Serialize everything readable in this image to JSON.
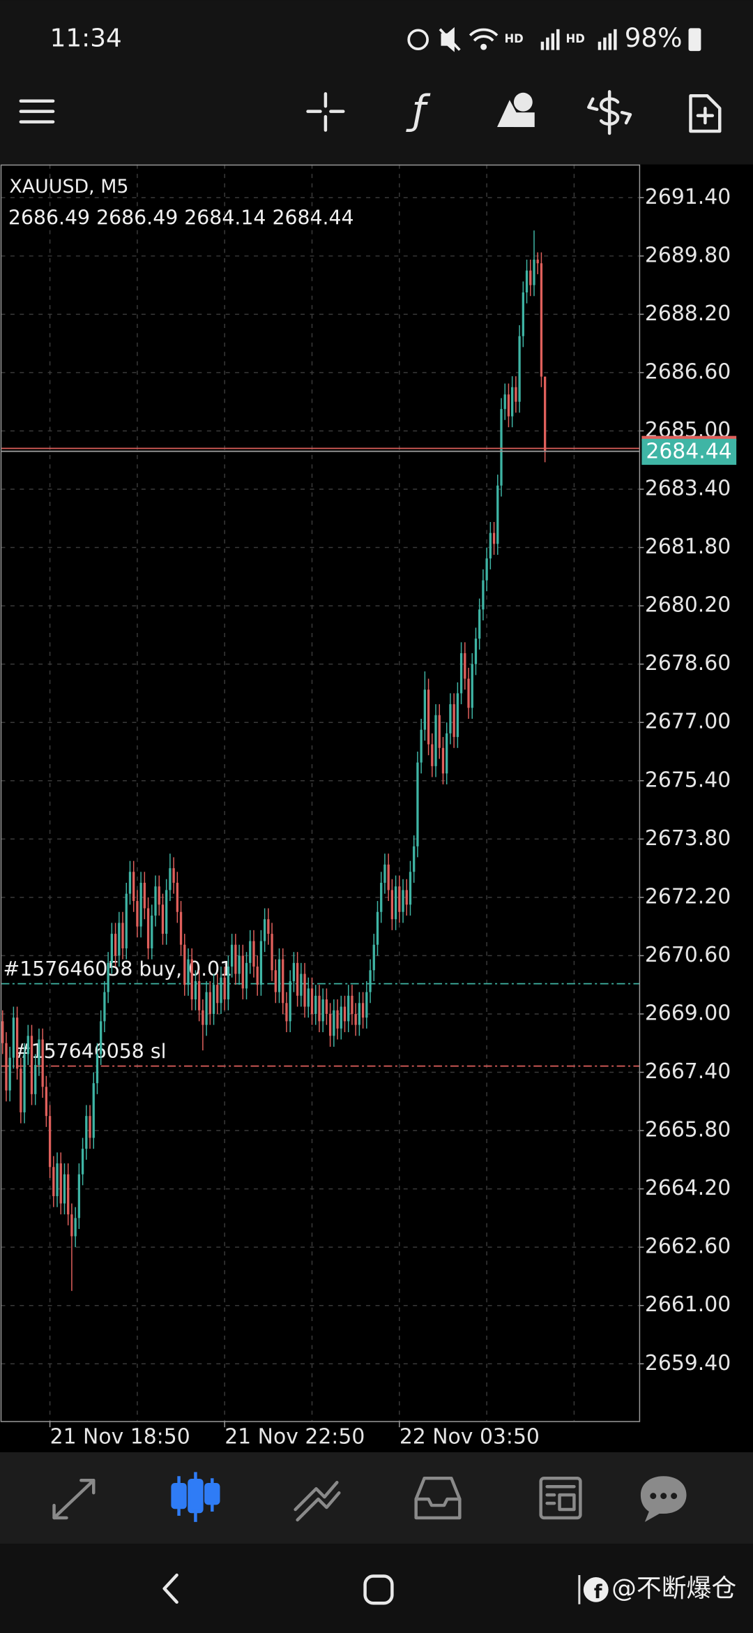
{
  "status_bar": {
    "time": "11:34",
    "battery": "98%"
  },
  "chart_data": {
    "type": "candlestick",
    "title": "XAUUSD, M5",
    "up_color": "#3fb5a5",
    "down_color": "#e0605c",
    "categories": [
      null,
      null,
      null,
      null,
      null,
      null,
      null,
      null,
      null,
      null,
      null,
      null,
      null,
      "21 Nov 18:50",
      null,
      null,
      null,
      null,
      null,
      null,
      null,
      null,
      null,
      null,
      null,
      null,
      null,
      null,
      null,
      null,
      null,
      null,
      null,
      null,
      null,
      null,
      null,
      null,
      null,
      null,
      null,
      null,
      null,
      null,
      null,
      null,
      null,
      null,
      null,
      null,
      null,
      null,
      null,
      null,
      null,
      null,
      null,
      null,
      null,
      null,
      null,
      "21 Nov 22:50",
      null,
      null,
      null,
      null,
      null,
      null,
      null,
      null,
      null,
      null,
      null,
      null,
      null,
      null,
      null,
      null,
      null,
      null,
      null,
      null,
      null,
      null,
      null,
      null,
      null,
      null,
      null,
      null,
      null,
      null,
      null,
      null,
      null,
      null,
      null,
      null,
      null,
      null,
      null,
      null,
      null,
      null,
      null,
      null,
      null,
      null,
      null,
      "22 Nov 03:50",
      null,
      null,
      null,
      null,
      null,
      null,
      null,
      null,
      null,
      null,
      null,
      null,
      null,
      null,
      null,
      null,
      null,
      null,
      null,
      null,
      null,
      null,
      null,
      null,
      null,
      null,
      null,
      null,
      null,
      null,
      null,
      null,
      null,
      null,
      null,
      null,
      null,
      null,
      null,
      null
    ],
    "open": [
      2668.8,
      2668.2,
      2666.9,
      2667.8,
      2668.9,
      2667.5,
      2666.3,
      2667.9,
      2668.4,
      2666.8,
      2667.6,
      2668.3,
      2667.0,
      2666.2,
      2664.8,
      2664.0,
      2664.9,
      2663.8,
      2664.6,
      2663.5,
      2662.9,
      2663.4,
      2664.6,
      2665.3,
      2666.2,
      2665.6,
      2667.1,
      2667.9,
      2668.8,
      2669.6,
      2670.4,
      2671.2,
      2670.6,
      2671.5,
      2670.8,
      2672.3,
      2672.9,
      2672.1,
      2671.4,
      2672.6,
      2671.9,
      2670.8,
      2671.7,
      2672.5,
      2672.0,
      2671.2,
      2672.4,
      2673.0,
      2672.6,
      2671.8,
      2670.9,
      2669.8,
      2670.5,
      2669.4,
      2669.9,
      2669.1,
      2668.7,
      2669.6,
      2669.0,
      2669.8,
      2669.3,
      2670.0,
      2669.4,
      2670.3,
      2670.9,
      2670.1,
      2670.6,
      2669.7,
      2670.4,
      2671.0,
      2670.3,
      2669.8,
      2671.0,
      2671.6,
      2671.2,
      2670.2,
      2669.6,
      2670.5,
      2669.3,
      2668.8,
      2669.9,
      2670.4,
      2669.5,
      2670.1,
      2669.2,
      2669.7,
      2669.0,
      2669.5,
      2668.8,
      2669.4,
      2669.0,
      2668.4,
      2669.1,
      2668.6,
      2669.2,
      2668.8,
      2669.5,
      2669.0,
      2668.7,
      2669.3,
      2668.9,
      2669.6,
      2670.2,
      2670.9,
      2671.8,
      2672.6,
      2673.1,
      2672.4,
      2671.6,
      2672.5,
      2671.8,
      2672.4,
      2672.0,
      2672.9,
      2673.6,
      2675.9,
      2676.8,
      2677.9,
      2676.4,
      2675.8,
      2677.2,
      2676.3,
      2675.6,
      2676.7,
      2677.5,
      2676.6,
      2677.8,
      2678.9,
      2678.2,
      2677.4,
      2678.6,
      2679.3,
      2680.1,
      2680.9,
      2681.5,
      2682.2,
      2681.9,
      2683.5,
      2685.6,
      2686.0,
      2685.4,
      2686.2,
      2685.8,
      2687.6,
      2688.8,
      2689.4,
      2689.0,
      2689.7,
      2689.6,
      2686.49
    ],
    "high": [
      2669.1,
      2668.5,
      2668.1,
      2669.2,
      2669.2,
      2667.8,
      2668.2,
      2668.7,
      2668.7,
      2667.9,
      2668.6,
      2668.6,
      2667.3,
      2666.5,
      2665.1,
      2665.2,
      2665.2,
      2664.9,
      2664.9,
      2663.8,
      2663.7,
      2664.9,
      2665.6,
      2666.5,
      2666.5,
      2667.4,
      2668.2,
      2669.1,
      2669.9,
      2670.7,
      2671.5,
      2671.5,
      2671.8,
      2671.8,
      2672.6,
      2673.2,
      2673.2,
      2672.4,
      2672.9,
      2672.9,
      2672.2,
      2672.0,
      2672.8,
      2672.8,
      2672.3,
      2672.7,
      2673.4,
      2673.3,
      2672.9,
      2672.1,
      2671.2,
      2670.8,
      2670.8,
      2670.2,
      2670.2,
      2669.4,
      2669.9,
      2669.9,
      2670.1,
      2670.1,
      2670.3,
      2670.3,
      2670.6,
      2671.2,
      2671.2,
      2670.9,
      2670.9,
      2670.7,
      2671.3,
      2671.3,
      2670.6,
      2671.3,
      2671.9,
      2671.9,
      2671.5,
      2670.5,
      2670.8,
      2670.8,
      2669.6,
      2670.2,
      2670.7,
      2670.7,
      2670.4,
      2670.4,
      2670.0,
      2670.0,
      2669.8,
      2669.8,
      2669.7,
      2669.7,
      2669.3,
      2669.4,
      2669.4,
      2669.5,
      2669.5,
      2669.8,
      2669.8,
      2669.3,
      2669.6,
      2669.6,
      2669.9,
      2670.5,
      2671.2,
      2672.1,
      2672.9,
      2673.4,
      2673.4,
      2672.7,
      2672.8,
      2672.8,
      2672.7,
      2672.7,
      2673.2,
      2673.9,
      2676.2,
      2677.1,
      2678.4,
      2678.2,
      2676.7,
      2677.5,
      2677.5,
      2676.6,
      2677.0,
      2677.8,
      2677.8,
      2678.1,
      2679.2,
      2679.2,
      2678.5,
      2678.9,
      2679.6,
      2680.4,
      2681.2,
      2681.8,
      2682.5,
      2682.5,
      2683.8,
      2685.9,
      2686.3,
      2686.3,
      2686.5,
      2686.5,
      2687.9,
      2689.1,
      2689.7,
      2689.7,
      2690.5,
      2689.9,
      2689.9,
      2686.49
    ],
    "low": [
      2667.9,
      2666.6,
      2666.6,
      2667.5,
      2667.2,
      2666.0,
      2666.0,
      2667.6,
      2666.5,
      2666.5,
      2667.3,
      2666.7,
      2665.9,
      2664.5,
      2663.7,
      2663.7,
      2663.5,
      2663.5,
      2663.2,
      2661.4,
      2662.6,
      2663.1,
      2664.3,
      2665.0,
      2665.3,
      2665.3,
      2666.8,
      2667.6,
      2668.5,
      2669.3,
      2670.1,
      2670.3,
      2670.3,
      2670.5,
      2670.5,
      2672.0,
      2671.8,
      2671.1,
      2671.1,
      2671.6,
      2670.5,
      2670.5,
      2671.4,
      2671.7,
      2670.9,
      2670.9,
      2672.1,
      2672.3,
      2671.5,
      2670.6,
      2669.5,
      2669.5,
      2669.1,
      2669.1,
      2668.8,
      2668.0,
      2668.4,
      2668.7,
      2668.7,
      2669.0,
      2669.0,
      2669.1,
      2669.1,
      2670.0,
      2669.8,
      2669.8,
      2669.4,
      2669.4,
      2670.1,
      2670.0,
      2669.5,
      2669.5,
      2670.7,
      2670.9,
      2669.9,
      2669.3,
      2669.3,
      2669.0,
      2668.5,
      2668.5,
      2669.6,
      2669.2,
      2669.2,
      2668.9,
      2668.9,
      2668.7,
      2668.7,
      2668.5,
      2668.5,
      2668.7,
      2668.1,
      2668.1,
      2668.3,
      2668.3,
      2668.5,
      2668.5,
      2668.7,
      2668.4,
      2668.4,
      2668.6,
      2668.6,
      2669.3,
      2669.9,
      2670.6,
      2671.5,
      2672.3,
      2672.1,
      2671.3,
      2671.3,
      2671.5,
      2671.5,
      2671.7,
      2671.7,
      2672.6,
      2673.3,
      2675.6,
      2676.5,
      2676.1,
      2675.5,
      2675.5,
      2676.0,
      2675.3,
      2675.3,
      2676.4,
      2676.3,
      2676.3,
      2677.5,
      2677.9,
      2677.1,
      2677.1,
      2678.3,
      2679.0,
      2679.8,
      2680.6,
      2681.2,
      2681.6,
      2681.6,
      2683.2,
      2685.3,
      2685.1,
      2685.1,
      2685.5,
      2685.5,
      2687.3,
      2688.5,
      2688.7,
      2688.7,
      2689.3,
      2686.2,
      2684.14
    ],
    "close": [
      2668.2,
      2666.9,
      2667.8,
      2668.9,
      2667.5,
      2666.3,
      2667.9,
      2668.4,
      2666.8,
      2667.6,
      2668.3,
      2667.0,
      2666.2,
      2664.8,
      2664.0,
      2664.9,
      2663.8,
      2664.6,
      2663.5,
      2662.9,
      2663.4,
      2664.6,
      2665.3,
      2666.2,
      2665.6,
      2667.1,
      2667.9,
      2668.8,
      2669.6,
      2670.4,
      2671.2,
      2670.6,
      2671.5,
      2670.8,
      2672.3,
      2672.9,
      2672.1,
      2671.4,
      2672.6,
      2671.9,
      2670.8,
      2671.7,
      2672.5,
      2672.0,
      2671.2,
      2672.4,
      2673.0,
      2672.6,
      2671.8,
      2670.9,
      2669.8,
      2670.5,
      2669.4,
      2669.9,
      2669.1,
      2668.7,
      2669.6,
      2669.0,
      2669.8,
      2669.3,
      2670.0,
      2669.4,
      2670.3,
      2670.9,
      2670.1,
      2670.6,
      2669.7,
      2670.4,
      2671.0,
      2670.3,
      2669.8,
      2671.0,
      2671.6,
      2671.2,
      2670.2,
      2669.6,
      2670.5,
      2669.3,
      2668.8,
      2669.9,
      2670.4,
      2669.5,
      2670.1,
      2669.2,
      2669.7,
      2669.0,
      2669.5,
      2668.8,
      2669.4,
      2669.0,
      2668.4,
      2669.1,
      2668.6,
      2669.2,
      2668.8,
      2669.5,
      2669.0,
      2668.7,
      2669.3,
      2668.9,
      2669.6,
      2670.2,
      2670.9,
      2671.8,
      2672.6,
      2673.1,
      2672.4,
      2671.6,
      2672.5,
      2671.8,
      2672.4,
      2672.0,
      2672.9,
      2673.6,
      2675.9,
      2676.8,
      2677.9,
      2676.4,
      2675.8,
      2677.2,
      2676.3,
      2675.6,
      2676.7,
      2677.5,
      2676.6,
      2677.8,
      2678.9,
      2678.2,
      2677.4,
      2678.6,
      2679.3,
      2680.1,
      2680.9,
      2681.5,
      2682.2,
      2681.9,
      2683.5,
      2685.6,
      2686.0,
      2685.4,
      2686.2,
      2685.8,
      2687.6,
      2688.8,
      2689.4,
      2689.0,
      2689.7,
      2689.6,
      2686.49,
      2684.44
    ],
    "ylim": [
      2657.83,
      2692.31
    ],
    "yticks": [
      {
        "value": 2691.4,
        "label": "2691.40"
      },
      {
        "value": 2689.8,
        "label": "2689.80"
      },
      {
        "value": 2688.2,
        "label": "2688.20"
      },
      {
        "value": 2686.6,
        "label": "2686.60"
      },
      {
        "value": 2685.0,
        "label": "2685.00"
      },
      {
        "value": 2683.4,
        "label": "2683.40"
      },
      {
        "value": 2681.8,
        "label": "2681.80"
      },
      {
        "value": 2680.2,
        "label": "2680.20"
      },
      {
        "value": 2678.6,
        "label": "2678.60"
      },
      {
        "value": 2677.0,
        "label": "2677.00"
      },
      {
        "value": 2675.4,
        "label": "2675.40"
      },
      {
        "value": 2673.8,
        "label": "2673.80"
      },
      {
        "value": 2672.2,
        "label": "2672.20"
      },
      {
        "value": 2670.6,
        "label": "2670.60"
      },
      {
        "value": 2669.0,
        "label": "2669.00"
      },
      {
        "value": 2667.4,
        "label": "2667.40"
      },
      {
        "value": 2665.8,
        "label": "2665.80"
      },
      {
        "value": 2664.2,
        "label": "2664.20"
      },
      {
        "value": 2662.6,
        "label": "2662.60"
      },
      {
        "value": 2661.0,
        "label": "2661.00"
      },
      {
        "value": 2659.4,
        "label": "2659.40"
      }
    ],
    "grid": true,
    "bid_color": "#3fb5a5",
    "ask": 2684.52,
    "ask_color": "#e0605c",
    "orders": [
      {
        "label": "#157646058 buy, 0.01",
        "price": 2669.83,
        "color": "#3fb5a5"
      },
      {
        "label": "#157646058 sl",
        "price": 2667.57,
        "color": "#e0605c"
      }
    ]
  },
  "watermark": "@不断爆仓"
}
